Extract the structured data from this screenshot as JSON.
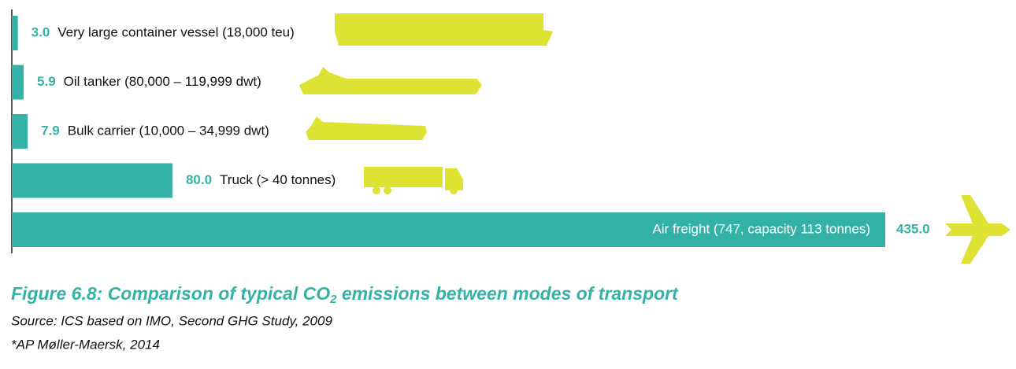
{
  "chart_data": {
    "type": "bar",
    "orientation": "horizontal",
    "categories": [
      "Very large container vessel (18,000 teu)",
      "Oil tanker (80,000 – 119,999 dwt)",
      "Bulk carrier (10,000 – 34,999 dwt)",
      "Truck (> 40 tonnes)",
      "Air freight (747, capacity 113 tonnes)"
    ],
    "values": [
      3.0,
      5.9,
      7.9,
      80.0,
      435.0
    ],
    "value_labels": [
      "3.0",
      "5.9",
      "7.9",
      "80.0",
      "435.0"
    ],
    "color": "#35b2a7",
    "title": [
      "Figure 6.8: Comparison of typical CO",
      "2",
      " emissions between modes of transport"
    ],
    "source": "Source: ICS based on IMO, Second GHG Study, 2009",
    "note": "*AP Møller-Maersk, 2014"
  }
}
